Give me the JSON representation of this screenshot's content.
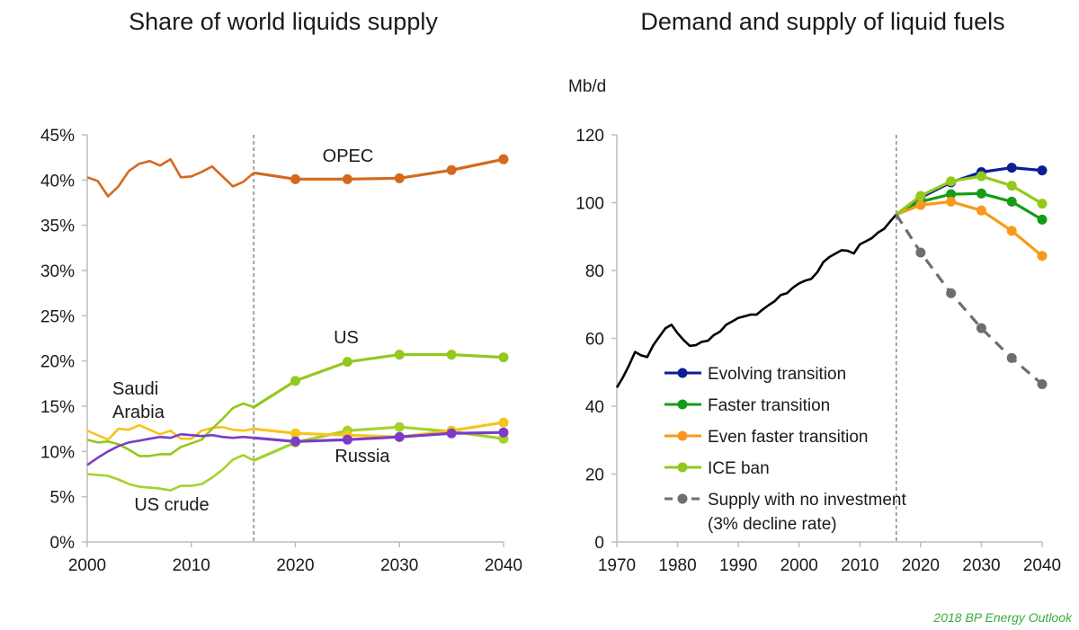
{
  "source_note": "2018 BP Energy Outlook",
  "colors": {
    "opec": "#d4691c",
    "us": "#92c91c",
    "saudi": "#f8c31b",
    "russia": "#7b3dc8",
    "us_crude": "#a3d22b",
    "history": "#000000",
    "evolving": "#0c1d96",
    "faster": "#169c16",
    "even_faster": "#f79a1c",
    "ice_ban": "#92c91c",
    "no_investment": "#6e6e6e",
    "divider": "#7a7a7a",
    "axis": "#bdbdbd"
  },
  "chart_data": [
    {
      "type": "line",
      "title": "Share of world liquids supply",
      "xlabel": "",
      "ylabel": "",
      "xlim": [
        2000,
        2040
      ],
      "ylim": [
        0,
        45
      ],
      "x_ticks": [
        "2000",
        "2010",
        "2020",
        "2030",
        "2040"
      ],
      "y_ticks": [
        "0%",
        "5%",
        "10%",
        "15%",
        "20%",
        "25%",
        "30%",
        "35%",
        "40%",
        "45%"
      ],
      "divider_year": 2016,
      "series": [
        {
          "name": "OPEC",
          "label": "OPEC",
          "color_key": "opec",
          "history": [
            [
              2000,
              40.3
            ],
            [
              2001,
              39.9
            ],
            [
              2002,
              38.2
            ],
            [
              2003,
              39.3
            ],
            [
              2004,
              41.0
            ],
            [
              2005,
              41.8
            ],
            [
              2006,
              42.1
            ],
            [
              2007,
              41.6
            ],
            [
              2008,
              42.3
            ],
            [
              2009,
              40.3
            ],
            [
              2010,
              40.4
            ],
            [
              2011,
              40.9
            ],
            [
              2012,
              41.5
            ],
            [
              2013,
              40.4
            ],
            [
              2014,
              39.3
            ],
            [
              2015,
              39.8
            ],
            [
              2016,
              40.8
            ]
          ],
          "projection": [
            [
              2016,
              40.8
            ],
            [
              2020,
              40.1
            ],
            [
              2025,
              40.1
            ],
            [
              2030,
              40.2
            ],
            [
              2035,
              41.1
            ],
            [
              2040,
              42.3
            ]
          ],
          "markers": true
        },
        {
          "name": "US",
          "label": "US",
          "color_key": "us",
          "history": [
            [
              2000,
              11.3
            ],
            [
              2001,
              11.0
            ],
            [
              2002,
              11.1
            ],
            [
              2003,
              10.8
            ],
            [
              2004,
              10.2
            ],
            [
              2005,
              9.5
            ],
            [
              2006,
              9.5
            ],
            [
              2007,
              9.7
            ],
            [
              2008,
              9.7
            ],
            [
              2009,
              10.5
            ],
            [
              2010,
              10.9
            ],
            [
              2011,
              11.3
            ],
            [
              2012,
              12.5
            ],
            [
              2013,
              13.6
            ],
            [
              2014,
              14.8
            ],
            [
              2015,
              15.3
            ],
            [
              2016,
              14.9
            ]
          ],
          "projection": [
            [
              2016,
              14.9
            ],
            [
              2020,
              17.8
            ],
            [
              2025,
              19.9
            ],
            [
              2030,
              20.7
            ],
            [
              2035,
              20.7
            ],
            [
              2040,
              20.4
            ]
          ],
          "markers": true
        },
        {
          "name": "Saudi Arabia",
          "label": "Saudi Arabia",
          "color_key": "saudi",
          "history": [
            [
              2000,
              12.3
            ],
            [
              2001,
              11.8
            ],
            [
              2002,
              11.3
            ],
            [
              2003,
              12.5
            ],
            [
              2004,
              12.4
            ],
            [
              2005,
              12.9
            ],
            [
              2006,
              12.4
            ],
            [
              2007,
              11.9
            ],
            [
              2008,
              12.3
            ],
            [
              2009,
              11.4
            ],
            [
              2010,
              11.4
            ],
            [
              2011,
              12.3
            ],
            [
              2012,
              12.6
            ],
            [
              2013,
              12.7
            ],
            [
              2014,
              12.4
            ],
            [
              2015,
              12.3
            ],
            [
              2016,
              12.5
            ]
          ],
          "projection": [
            [
              2016,
              12.5
            ],
            [
              2020,
              12.0
            ],
            [
              2025,
              11.8
            ],
            [
              2030,
              11.6
            ],
            [
              2035,
              12.3
            ],
            [
              2040,
              13.2
            ]
          ],
          "markers": true
        },
        {
          "name": "Russia",
          "label": "Russia",
          "color_key": "russia",
          "history": [
            [
              2000,
              8.5
            ],
            [
              2001,
              9.3
            ],
            [
              2002,
              10.0
            ],
            [
              2003,
              10.6
            ],
            [
              2004,
              11.0
            ],
            [
              2005,
              11.2
            ],
            [
              2006,
              11.4
            ],
            [
              2007,
              11.6
            ],
            [
              2008,
              11.5
            ],
            [
              2009,
              11.9
            ],
            [
              2010,
              11.8
            ],
            [
              2011,
              11.7
            ],
            [
              2012,
              11.8
            ],
            [
              2013,
              11.6
            ],
            [
              2014,
              11.5
            ],
            [
              2015,
              11.6
            ],
            [
              2016,
              11.5
            ]
          ],
          "projection": [
            [
              2016,
              11.5
            ],
            [
              2020,
              11.1
            ],
            [
              2025,
              11.3
            ],
            [
              2030,
              11.6
            ],
            [
              2035,
              12.0
            ],
            [
              2040,
              12.1
            ]
          ],
          "markers": true
        },
        {
          "name": "US crude",
          "label": "US crude",
          "color_key": "us_crude",
          "history": [
            [
              2000,
              7.5
            ],
            [
              2001,
              7.4
            ],
            [
              2002,
              7.3
            ],
            [
              2003,
              6.9
            ],
            [
              2004,
              6.4
            ],
            [
              2005,
              6.1
            ],
            [
              2006,
              6.0
            ],
            [
              2007,
              5.9
            ],
            [
              2008,
              5.7
            ],
            [
              2009,
              6.2
            ],
            [
              2010,
              6.2
            ],
            [
              2011,
              6.4
            ],
            [
              2012,
              7.1
            ],
            [
              2013,
              8.0
            ],
            [
              2014,
              9.1
            ],
            [
              2015,
              9.6
            ],
            [
              2016,
              9.0
            ]
          ],
          "projection": [
            [
              2016,
              9.0
            ],
            [
              2020,
              11.0
            ],
            [
              2025,
              12.3
            ],
            [
              2030,
              12.7
            ],
            [
              2035,
              12.2
            ],
            [
              2040,
              11.4
            ]
          ],
          "markers": true
        }
      ]
    },
    {
      "type": "line",
      "title": "Demand and supply of liquid fuels",
      "ylabel": "Mb/d",
      "xlabel": "",
      "xlim": [
        1970,
        2040
      ],
      "ylim": [
        0,
        120
      ],
      "x_ticks": [
        "1970",
        "1980",
        "1990",
        "2000",
        "2010",
        "2020",
        "2030",
        "2040"
      ],
      "y_ticks": [
        "0",
        "20",
        "40",
        "60",
        "80",
        "100",
        "120"
      ],
      "divider_year": 2016,
      "history": {
        "name": "History",
        "color_key": "history",
        "points": [
          [
            1970,
            45.5
          ],
          [
            1971,
            48.5
          ],
          [
            1972,
            52.0
          ],
          [
            1973,
            56.0
          ],
          [
            1974,
            55.0
          ],
          [
            1975,
            54.5
          ],
          [
            1976,
            58.0
          ],
          [
            1977,
            60.5
          ],
          [
            1978,
            63.0
          ],
          [
            1979,
            64.0
          ],
          [
            1980,
            61.5
          ],
          [
            1981,
            59.5
          ],
          [
            1982,
            57.8
          ],
          [
            1983,
            58.0
          ],
          [
            1984,
            59.0
          ],
          [
            1985,
            59.3
          ],
          [
            1986,
            61.0
          ],
          [
            1987,
            62.0
          ],
          [
            1988,
            64.0
          ],
          [
            1989,
            65.0
          ],
          [
            1990,
            66.0
          ],
          [
            1991,
            66.5
          ],
          [
            1992,
            67.0
          ],
          [
            1993,
            67.0
          ],
          [
            1994,
            68.5
          ],
          [
            1995,
            69.8
          ],
          [
            1996,
            71.0
          ],
          [
            1997,
            72.8
          ],
          [
            1998,
            73.3
          ],
          [
            1999,
            75.0
          ],
          [
            2000,
            76.2
          ],
          [
            2001,
            77.0
          ],
          [
            2002,
            77.5
          ],
          [
            2003,
            79.5
          ],
          [
            2004,
            82.5
          ],
          [
            2005,
            84.0
          ],
          [
            2006,
            85.0
          ],
          [
            2007,
            86.0
          ],
          [
            2008,
            85.8
          ],
          [
            2009,
            85.0
          ],
          [
            2010,
            87.7
          ],
          [
            2011,
            88.6
          ],
          [
            2012,
            89.6
          ],
          [
            2013,
            91.2
          ],
          [
            2014,
            92.3
          ],
          [
            2015,
            94.5
          ],
          [
            2016,
            96.5
          ]
        ]
      },
      "series": [
        {
          "name": "Evolving transition",
          "color_key": "evolving",
          "dashed": false,
          "points": [
            [
              2016,
              96.5
            ],
            [
              2020,
              101.5
            ],
            [
              2025,
              106.0
            ],
            [
              2030,
              109.0
            ],
            [
              2035,
              110.3
            ],
            [
              2040,
              109.5
            ]
          ]
        },
        {
          "name": "Faster transition",
          "color_key": "faster",
          "dashed": false,
          "points": [
            [
              2016,
              96.5
            ],
            [
              2020,
              100.3
            ],
            [
              2025,
              102.5
            ],
            [
              2030,
              102.7
            ],
            [
              2035,
              100.3
            ],
            [
              2040,
              95.0
            ]
          ]
        },
        {
          "name": "Even faster transition",
          "color_key": "even_faster",
          "dashed": false,
          "points": [
            [
              2016,
              96.5
            ],
            [
              2020,
              99.3
            ],
            [
              2025,
              100.3
            ],
            [
              2030,
              97.7
            ],
            [
              2035,
              91.7
            ],
            [
              2040,
              84.3
            ]
          ]
        },
        {
          "name": "ICE ban",
          "color_key": "ice_ban",
          "dashed": false,
          "points": [
            [
              2016,
              96.5
            ],
            [
              2020,
              102.0
            ],
            [
              2025,
              106.3
            ],
            [
              2030,
              107.8
            ],
            [
              2035,
              105.0
            ],
            [
              2040,
              99.7
            ]
          ]
        },
        {
          "name": "Supply with no investment",
          "name_line2": "(3% decline rate)",
          "color_key": "no_investment",
          "dashed": true,
          "points": [
            [
              2016,
              96.5
            ],
            [
              2020,
              85.3
            ],
            [
              2025,
              73.3
            ],
            [
              2030,
              63.0
            ],
            [
              2035,
              54.2
            ],
            [
              2040,
              46.5
            ]
          ]
        }
      ],
      "legend_position": "center-left"
    }
  ]
}
